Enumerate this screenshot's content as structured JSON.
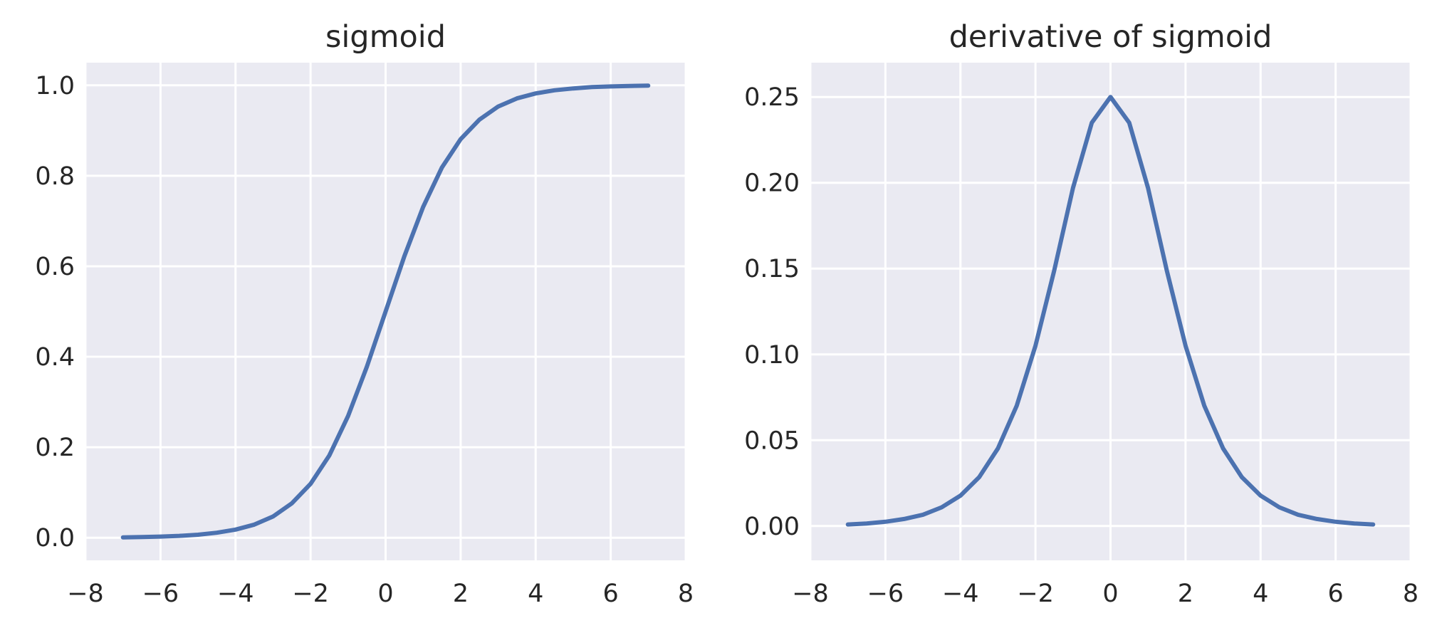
{
  "chart_data": [
    {
      "type": "line",
      "title": "sigmoid",
      "xlabel": "",
      "ylabel": "",
      "xlim": [
        -8,
        8
      ],
      "ylim": [
        -0.05,
        1.05
      ],
      "xticks": [
        -8,
        -6,
        -4,
        -2,
        0,
        2,
        4,
        6,
        8
      ],
      "xtick_labels": [
        "−8",
        "−6",
        "−4",
        "−2",
        "0",
        "2",
        "4",
        "6",
        "8"
      ],
      "yticks": [
        0.0,
        0.2,
        0.4,
        0.6,
        0.8,
        1.0
      ],
      "ytick_labels": [
        "0.0",
        "0.2",
        "0.4",
        "0.6",
        "0.8",
        "1.0"
      ],
      "grid": true,
      "background": "#EAEAF2",
      "series": [
        {
          "color": "#4C72B0",
          "x": [
            -7,
            -6.5,
            -6,
            -5.5,
            -5,
            -4.5,
            -4,
            -3.5,
            -3,
            -2.5,
            -2,
            -1.5,
            -1,
            -0.5,
            0,
            0.5,
            1,
            1.5,
            2,
            2.5,
            3,
            3.5,
            4,
            4.5,
            5,
            5.5,
            6,
            6.5,
            7
          ],
          "y": [
            0.0009,
            0.0015,
            0.0025,
            0.0041,
            0.0067,
            0.011,
            0.018,
            0.029,
            0.047,
            0.076,
            0.119,
            0.182,
            0.269,
            0.378,
            0.5,
            0.622,
            0.731,
            0.818,
            0.881,
            0.924,
            0.953,
            0.971,
            0.982,
            0.989,
            0.993,
            0.996,
            0.9975,
            0.9985,
            0.9991
          ]
        }
      ]
    },
    {
      "type": "line",
      "title": "derivative of sigmoid",
      "xlabel": "",
      "ylabel": "",
      "xlim": [
        -8,
        8
      ],
      "ylim": [
        -0.02,
        0.27
      ],
      "xticks": [
        -8,
        -6,
        -4,
        -2,
        0,
        2,
        4,
        6,
        8
      ],
      "xtick_labels": [
        "−8",
        "−6",
        "−4",
        "−2",
        "0",
        "2",
        "4",
        "6",
        "8"
      ],
      "yticks": [
        0.0,
        0.05,
        0.1,
        0.15,
        0.2,
        0.25
      ],
      "ytick_labels": [
        "0.00",
        "0.05",
        "0.10",
        "0.15",
        "0.20",
        "0.25"
      ],
      "grid": true,
      "background": "#EAEAF2",
      "series": [
        {
          "color": "#4C72B0",
          "x": [
            -7,
            -6.5,
            -6,
            -5.5,
            -5,
            -4.5,
            -4,
            -3.5,
            -3,
            -2.5,
            -2,
            -1.5,
            -1,
            -0.5,
            0,
            0.5,
            1,
            1.5,
            2,
            2.5,
            3,
            3.5,
            4,
            4.5,
            5,
            5.5,
            6,
            6.5,
            7
          ],
          "y": [
            0.0009,
            0.0015,
            0.0025,
            0.0041,
            0.0066,
            0.0109,
            0.0177,
            0.0285,
            0.0452,
            0.0701,
            0.105,
            0.149,
            0.197,
            0.235,
            0.25,
            0.235,
            0.197,
            0.149,
            0.105,
            0.0701,
            0.0452,
            0.0285,
            0.0177,
            0.0109,
            0.0066,
            0.0041,
            0.0025,
            0.0015,
            0.0009
          ]
        }
      ]
    }
  ]
}
